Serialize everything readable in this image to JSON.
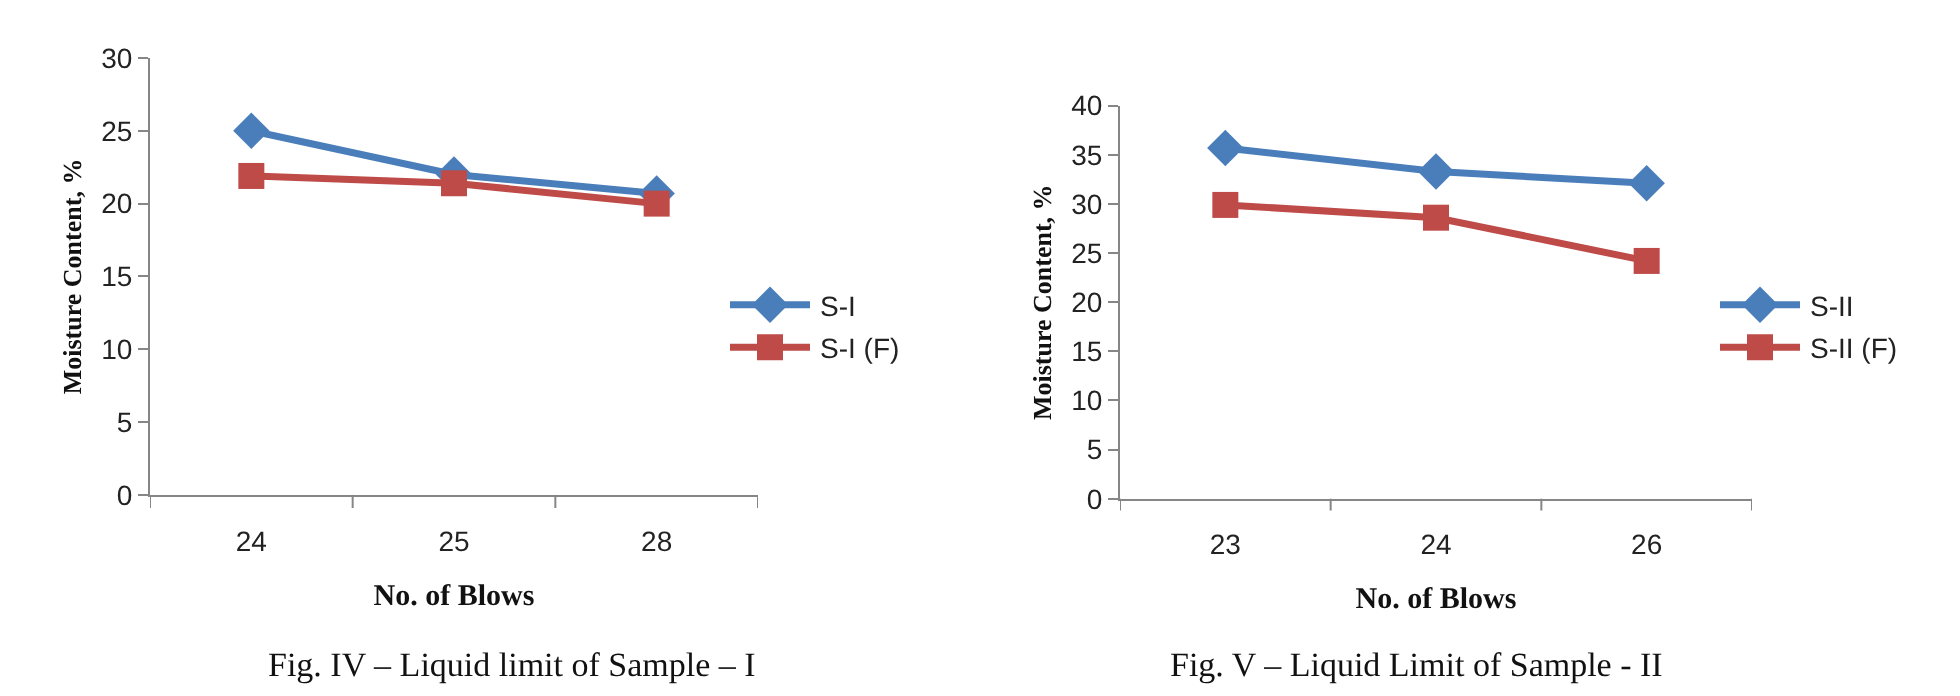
{
  "chart_data": [
    {
      "type": "line",
      "title": "Fig. IV – Liquid limit of Sample – I",
      "xlabel": "No. of Blows",
      "ylabel": "Moisture Content, %",
      "categories": [
        "24",
        "25",
        "28"
      ],
      "ylim": [
        0,
        30
      ],
      "yticks": [
        0,
        5,
        10,
        15,
        20,
        25,
        30
      ],
      "legend": "right",
      "series": [
        {
          "name": "S-I",
          "color": "#4a7ebb",
          "marker": "diamond",
          "values": [
            25.0,
            22.0,
            20.7
          ]
        },
        {
          "name": "S-I (F)",
          "color": "#be4b48",
          "marker": "square",
          "values": [
            21.9,
            21.4,
            20.0
          ]
        }
      ]
    },
    {
      "type": "line",
      "title": "Fig. V – Liquid Limit of Sample - II",
      "xlabel": "No. of Blows",
      "ylabel": "Moisture Content, %",
      "categories": [
        "23",
        "24",
        "26"
      ],
      "ylim": [
        0,
        40
      ],
      "yticks": [
        0,
        5,
        10,
        15,
        20,
        25,
        30,
        35,
        40
      ],
      "legend": "right",
      "series": [
        {
          "name": "S-II",
          "color": "#4a7ebb",
          "marker": "diamond",
          "values": [
            35.7,
            33.3,
            32.1
          ]
        },
        {
          "name": "S-II (F)",
          "color": "#be4b48",
          "marker": "square",
          "values": [
            29.9,
            28.6,
            24.2
          ]
        }
      ]
    }
  ]
}
